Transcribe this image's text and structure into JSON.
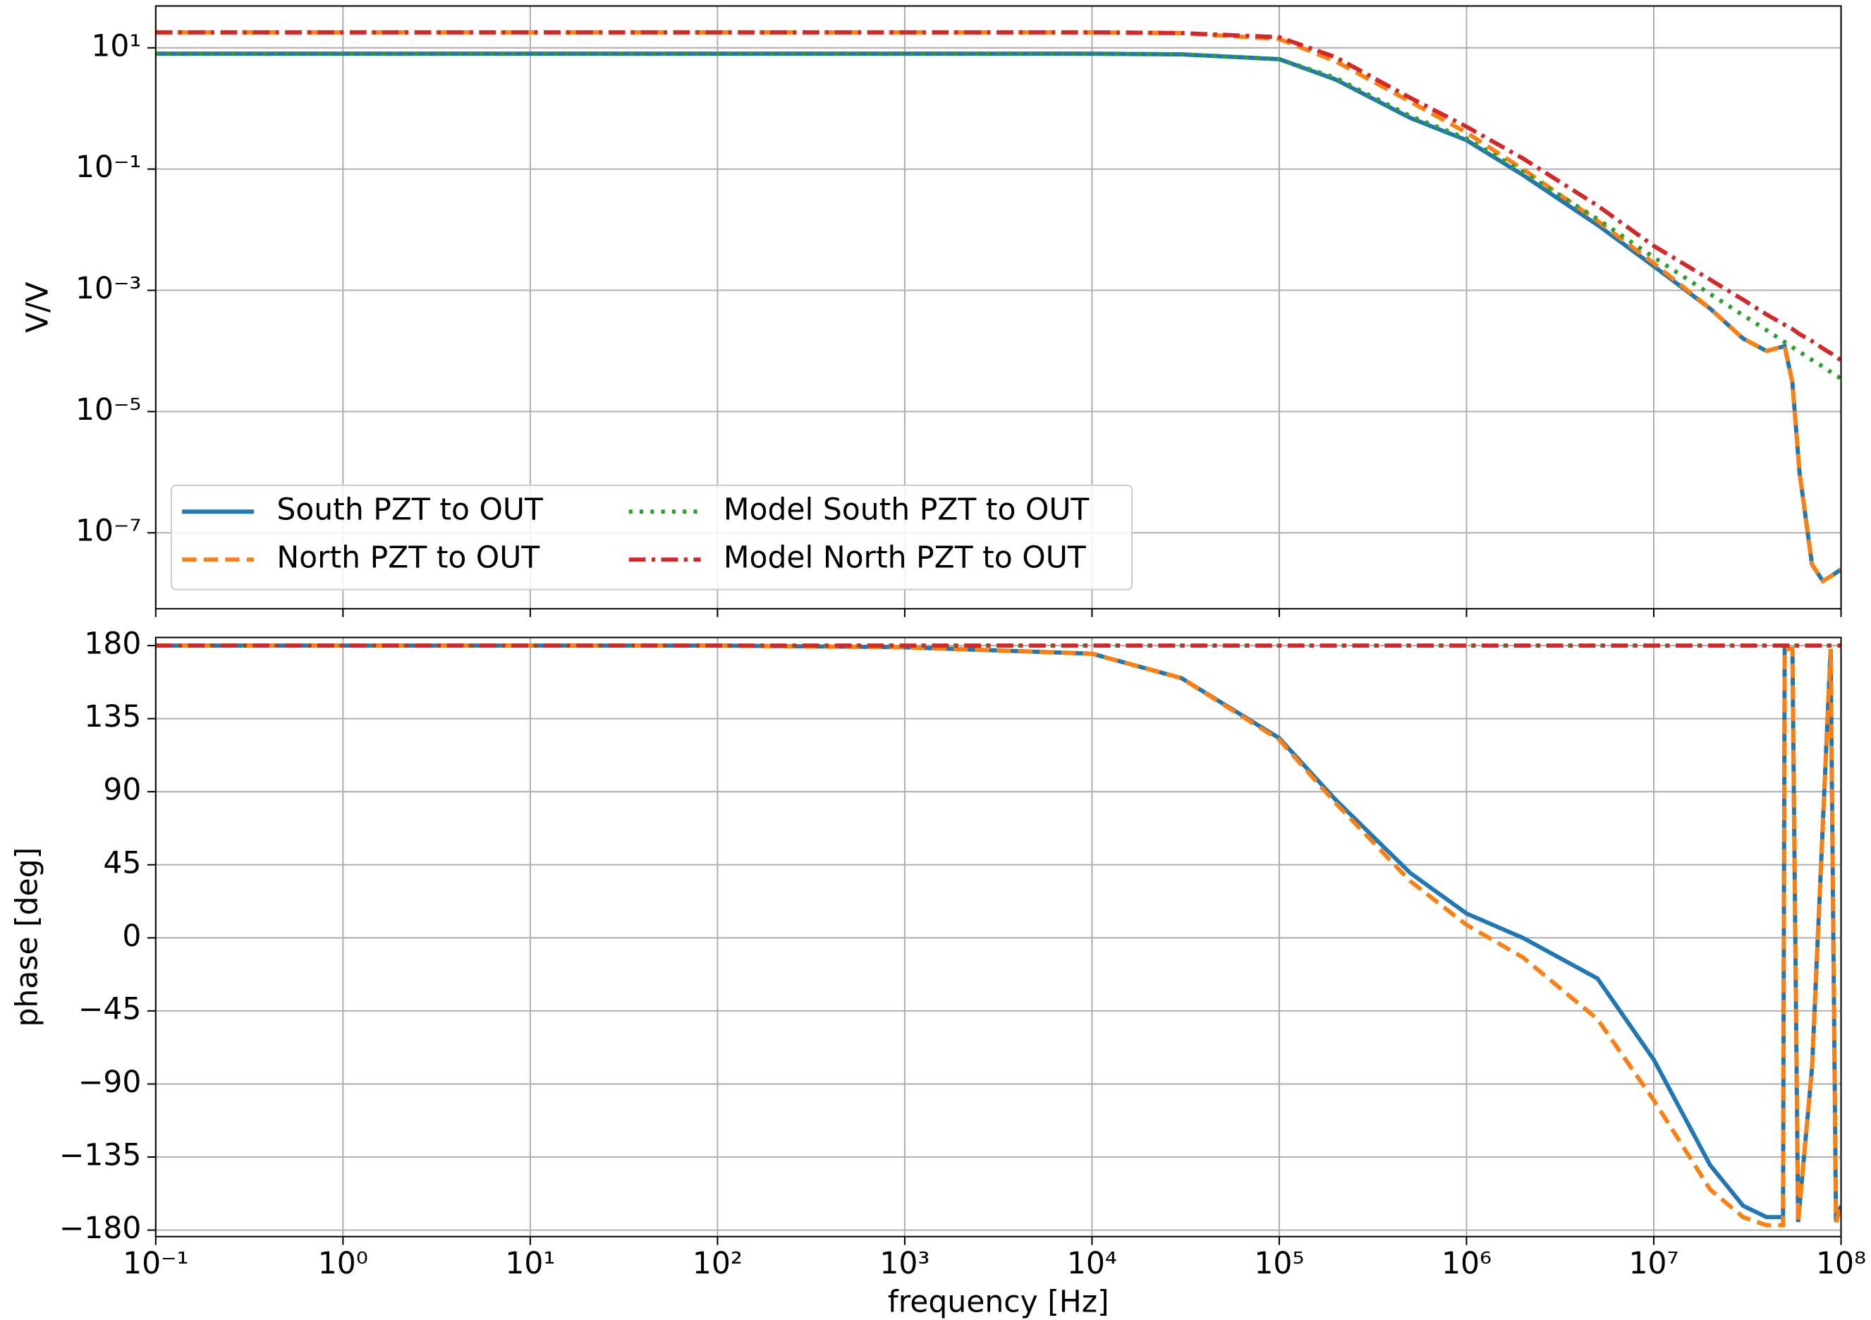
{
  "chart_data": [
    {
      "type": "line",
      "xscale": "log",
      "yscale": "log",
      "grid": true,
      "legend": "lower left",
      "legend_columns": 2,
      "ylabel": "V/V",
      "x": [
        0.1,
        1,
        10,
        100,
        1000,
        10000,
        30000,
        100000,
        200000,
        500000,
        1000000,
        2000000,
        5000000,
        10000000,
        20000000,
        30000000,
        40000000,
        50000000,
        55000000,
        60000000,
        70000000,
        80000000,
        90000000,
        100000000
      ],
      "xlim": [
        0.1,
        100000000
      ],
      "xticks": [
        0.1,
        1,
        10,
        100,
        1000,
        10000,
        100000,
        1000000,
        10000000,
        100000000
      ],
      "ylim": [
        5.6e-09,
        49
      ],
      "yticks": [
        {
          "value": 10,
          "label": "10¹"
        },
        {
          "value": 0.1,
          "label": "10⁻¹"
        },
        {
          "value": 0.001,
          "label": "10⁻³"
        },
        {
          "value": 1e-05,
          "label": "10⁻⁵"
        },
        {
          "value": 1e-07,
          "label": "10⁻⁷"
        }
      ],
      "series": [
        {
          "name": "South PZT to OUT",
          "color": "#1f77b4",
          "linestyle": "solid",
          "values": [
            8,
            8,
            8,
            8,
            8,
            8,
            7.8,
            6.5,
            3,
            0.7,
            0.3,
            0.08,
            0.012,
            0.0025,
            0.0005,
            0.00016,
            0.0001,
            0.00012,
            3e-05,
            1e-06,
            3e-08,
            1.6e-08,
            2e-08,
            2.5e-08
          ]
        },
        {
          "name": "North PZT to OUT",
          "color": "#ff7f0e",
          "linestyle": "dashed",
          "values": [
            18,
            18,
            18,
            18,
            18,
            18,
            17.5,
            14,
            6,
            1.3,
            0.4,
            0.1,
            0.014,
            0.0028,
            0.0005,
            0.00016,
            0.0001,
            0.00012,
            3e-05,
            1e-06,
            3e-08,
            1.6e-08,
            2e-08,
            2.5e-08
          ]
        },
        {
          "name": "Model South PZT to OUT",
          "color": "#2ca02c",
          "linestyle": "dotted",
          "values": [
            8,
            8,
            8,
            8,
            8,
            8,
            7.8,
            6.5,
            3.2,
            0.75,
            0.32,
            0.09,
            0.015,
            0.0035,
            0.00087,
            0.00039,
            0.00022,
            0.00014,
            0.000115,
            9.7e-05,
            7.1e-05,
            5.5e-05,
            4.3e-05,
            3.5e-05
          ]
        },
        {
          "name": "Model North PZT to OUT",
          "color": "#d62728",
          "linestyle": "dashdot",
          "values": [
            18,
            18,
            18,
            18,
            18,
            18,
            17.5,
            15,
            7,
            1.5,
            0.5,
            0.15,
            0.025,
            0.0054,
            0.0015,
            0.0007,
            0.0004,
            0.00027,
            0.00023,
            0.00019,
            0.000145,
            0.00011,
            8.8e-05,
            7e-05
          ]
        }
      ]
    },
    {
      "type": "line",
      "xscale": "log",
      "yscale": "linear",
      "grid": true,
      "xlabel": "frequency [Hz]",
      "ylabel": "phase [deg]",
      "x": [
        0.1,
        1,
        10,
        100,
        1000,
        10000,
        30000,
        100000,
        200000,
        500000,
        1000000,
        2000000,
        5000000,
        10000000,
        20000000,
        30000000,
        40000000,
        49000000,
        50000000,
        55000000,
        59000000,
        70000000,
        88000000,
        94000000,
        100000000
      ],
      "xlim": [
        0.1,
        100000000
      ],
      "xticks": [
        {
          "value": 0.1,
          "label": "10⁻¹"
        },
        {
          "value": 1,
          "label": "10⁰"
        },
        {
          "value": 10,
          "label": "10¹"
        },
        {
          "value": 100,
          "label": "10²"
        },
        {
          "value": 1000,
          "label": "10³"
        },
        {
          "value": 10000,
          "label": "10⁴"
        },
        {
          "value": 100000,
          "label": "10⁵"
        },
        {
          "value": 1000000,
          "label": "10⁶"
        },
        {
          "value": 10000000,
          "label": "10⁷"
        },
        {
          "value": 100000000,
          "label": "10⁸"
        }
      ],
      "ylim": [
        -184,
        185
      ],
      "yticks": [
        180,
        135,
        90,
        45,
        0,
        {
          "value": -45,
          "label": "−45"
        },
        {
          "value": -90,
          "label": "−90"
        },
        {
          "value": -135,
          "label": "−135"
        },
        {
          "value": -180,
          "label": "−180"
        }
      ],
      "series": [
        {
          "name": "South PZT to OUT",
          "color": "#1f77b4",
          "linestyle": "solid",
          "values": [
            180,
            180,
            180,
            180,
            179,
            175,
            160,
            123,
            85,
            40,
            15,
            0,
            -25,
            -75,
            -140,
            -165,
            -172,
            -172,
            178,
            178,
            -175,
            -80,
            178,
            -175,
            -165
          ]
        },
        {
          "name": "North PZT to OUT",
          "color": "#ff7f0e",
          "linestyle": "dashed",
          "values": [
            180,
            180,
            180,
            180,
            179,
            175,
            160,
            122,
            83,
            35,
            8,
            -12,
            -50,
            -100,
            -155,
            -172,
            -177,
            -177,
            178,
            178,
            -175,
            -80,
            178,
            -175,
            -165
          ]
        },
        {
          "name": "Model South PZT to OUT",
          "color": "#2ca02c",
          "linestyle": "dotted",
          "values": [
            180,
            180,
            180,
            180,
            180,
            180,
            180,
            180,
            180,
            180,
            180,
            180,
            180,
            180,
            180,
            180,
            180,
            180,
            180,
            180,
            180,
            180,
            180,
            180,
            180
          ]
        },
        {
          "name": "Model North PZT to OUT",
          "color": "#d62728",
          "linestyle": "dashdot",
          "values": [
            180,
            180,
            180,
            180,
            180,
            180,
            180,
            180,
            180,
            180,
            180,
            180,
            180,
            180,
            180,
            180,
            180,
            180,
            180,
            180,
            180,
            180,
            180,
            180,
            180
          ]
        }
      ]
    }
  ]
}
